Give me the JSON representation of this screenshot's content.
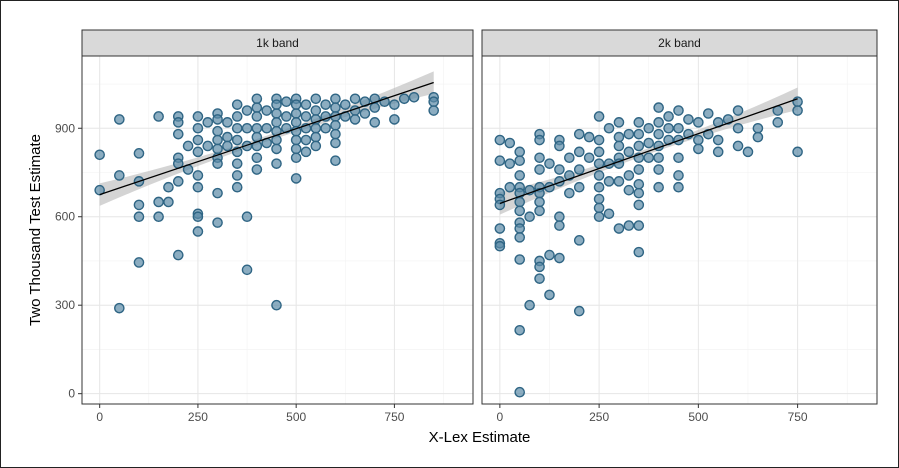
{
  "chart_data": {
    "type": "scatter",
    "xlabel": "X-Lex Estimate",
    "ylabel": "Two Thousand Test Estimate",
    "xlim": [
      -45,
      950
    ],
    "ylim": [
      -35,
      1145
    ],
    "xticks": [
      0,
      250,
      500,
      750
    ],
    "yticks": [
      0,
      300,
      600,
      900
    ],
    "grid": true,
    "colors": {
      "point_fill": "#5b8aa6",
      "point_stroke": "#2f6584",
      "fit_line": "#000000",
      "ci_band": "#bdbdbd"
    },
    "panels": [
      {
        "label": "1k band",
        "fit": {
          "x": [
            0,
            850
          ],
          "y": [
            675,
            1055
          ]
        },
        "points": [
          [
            0,
            810
          ],
          [
            0,
            690
          ],
          [
            50,
            930
          ],
          [
            50,
            740
          ],
          [
            50,
            290
          ],
          [
            100,
            815
          ],
          [
            100,
            720
          ],
          [
            100,
            640
          ],
          [
            100,
            600
          ],
          [
            100,
            445
          ],
          [
            150,
            940
          ],
          [
            150,
            650
          ],
          [
            150,
            600
          ],
          [
            175,
            700
          ],
          [
            175,
            650
          ],
          [
            200,
            940
          ],
          [
            200,
            920
          ],
          [
            200,
            880
          ],
          [
            200,
            800
          ],
          [
            200,
            780
          ],
          [
            200,
            720
          ],
          [
            200,
            470
          ],
          [
            225,
            840
          ],
          [
            225,
            760
          ],
          [
            250,
            940
          ],
          [
            250,
            900
          ],
          [
            250,
            860
          ],
          [
            250,
            820
          ],
          [
            250,
            740
          ],
          [
            250,
            700
          ],
          [
            250,
            610
          ],
          [
            250,
            600
          ],
          [
            250,
            550
          ],
          [
            275,
            920
          ],
          [
            275,
            840
          ],
          [
            300,
            950
          ],
          [
            300,
            930
          ],
          [
            300,
            890
          ],
          [
            300,
            860
          ],
          [
            300,
            830
          ],
          [
            300,
            800
          ],
          [
            300,
            780
          ],
          [
            300,
            680
          ],
          [
            300,
            580
          ],
          [
            325,
            920
          ],
          [
            325,
            870
          ],
          [
            325,
            840
          ],
          [
            350,
            980
          ],
          [
            350,
            940
          ],
          [
            350,
            900
          ],
          [
            350,
            860
          ],
          [
            350,
            820
          ],
          [
            350,
            780
          ],
          [
            350,
            740
          ],
          [
            350,
            700
          ],
          [
            375,
            960
          ],
          [
            375,
            900
          ],
          [
            375,
            840
          ],
          [
            375,
            600
          ],
          [
            375,
            420
          ],
          [
            400,
            1000
          ],
          [
            400,
            970
          ],
          [
            400,
            940
          ],
          [
            400,
            900
          ],
          [
            400,
            870
          ],
          [
            400,
            840
          ],
          [
            400,
            800
          ],
          [
            400,
            760
          ],
          [
            425,
            960
          ],
          [
            425,
            900
          ],
          [
            425,
            850
          ],
          [
            450,
            1000
          ],
          [
            450,
            980
          ],
          [
            450,
            950
          ],
          [
            450,
            920
          ],
          [
            450,
            890
          ],
          [
            450,
            860
          ],
          [
            450,
            830
          ],
          [
            450,
            780
          ],
          [
            450,
            300
          ],
          [
            475,
            990
          ],
          [
            475,
            940
          ],
          [
            475,
            900
          ],
          [
            500,
            1000
          ],
          [
            500,
            980
          ],
          [
            500,
            950
          ],
          [
            500,
            920
          ],
          [
            500,
            890
          ],
          [
            500,
            860
          ],
          [
            500,
            830
          ],
          [
            500,
            800
          ],
          [
            500,
            730
          ],
          [
            525,
            980
          ],
          [
            525,
            940
          ],
          [
            525,
            900
          ],
          [
            525,
            860
          ],
          [
            525,
            820
          ],
          [
            550,
            1000
          ],
          [
            550,
            960
          ],
          [
            550,
            930
          ],
          [
            550,
            900
          ],
          [
            550,
            870
          ],
          [
            550,
            840
          ],
          [
            575,
            980
          ],
          [
            575,
            940
          ],
          [
            575,
            900
          ],
          [
            600,
            1000
          ],
          [
            600,
            970
          ],
          [
            600,
            940
          ],
          [
            600,
            910
          ],
          [
            600,
            880
          ],
          [
            600,
            850
          ],
          [
            600,
            790
          ],
          [
            625,
            980
          ],
          [
            625,
            940
          ],
          [
            650,
            1000
          ],
          [
            650,
            960
          ],
          [
            650,
            930
          ],
          [
            675,
            990
          ],
          [
            675,
            950
          ],
          [
            700,
            1000
          ],
          [
            700,
            970
          ],
          [
            700,
            920
          ],
          [
            725,
            990
          ],
          [
            750,
            980
          ],
          [
            750,
            930
          ],
          [
            775,
            1000
          ],
          [
            800,
            1005
          ],
          [
            850,
            1005
          ],
          [
            850,
            990
          ],
          [
            850,
            960
          ]
        ]
      },
      {
        "label": "2k band",
        "fit": {
          "x": [
            0,
            750
          ],
          "y": [
            645,
            1000
          ]
        },
        "points": [
          [
            0,
            860
          ],
          [
            0,
            790
          ],
          [
            0,
            680
          ],
          [
            0,
            660
          ],
          [
            0,
            640
          ],
          [
            0,
            560
          ],
          [
            0,
            510
          ],
          [
            0,
            500
          ],
          [
            25,
            850
          ],
          [
            25,
            780
          ],
          [
            25,
            700
          ],
          [
            50,
            820
          ],
          [
            50,
            790
          ],
          [
            50,
            740
          ],
          [
            50,
            700
          ],
          [
            50,
            680
          ],
          [
            50,
            650
          ],
          [
            50,
            620
          ],
          [
            50,
            580
          ],
          [
            50,
            560
          ],
          [
            50,
            530
          ],
          [
            50,
            455
          ],
          [
            50,
            215
          ],
          [
            50,
            5
          ],
          [
            75,
            690
          ],
          [
            75,
            600
          ],
          [
            75,
            300
          ],
          [
            100,
            880
          ],
          [
            100,
            860
          ],
          [
            100,
            800
          ],
          [
            100,
            760
          ],
          [
            100,
            700
          ],
          [
            100,
            680
          ],
          [
            100,
            650
          ],
          [
            100,
            620
          ],
          [
            100,
            450
          ],
          [
            100,
            430
          ],
          [
            100,
            390
          ],
          [
            125,
            780
          ],
          [
            125,
            700
          ],
          [
            125,
            470
          ],
          [
            125,
            335
          ],
          [
            150,
            860
          ],
          [
            150,
            840
          ],
          [
            150,
            760
          ],
          [
            150,
            720
          ],
          [
            150,
            600
          ],
          [
            150,
            570
          ],
          [
            150,
            460
          ],
          [
            175,
            800
          ],
          [
            175,
            740
          ],
          [
            175,
            680
          ],
          [
            200,
            880
          ],
          [
            200,
            820
          ],
          [
            200,
            760
          ],
          [
            200,
            700
          ],
          [
            200,
            520
          ],
          [
            200,
            280
          ],
          [
            225,
            870
          ],
          [
            225,
            800
          ],
          [
            250,
            940
          ],
          [
            250,
            860
          ],
          [
            250,
            820
          ],
          [
            250,
            780
          ],
          [
            250,
            740
          ],
          [
            250,
            700
          ],
          [
            250,
            660
          ],
          [
            250,
            630
          ],
          [
            250,
            600
          ],
          [
            275,
            900
          ],
          [
            275,
            780
          ],
          [
            275,
            720
          ],
          [
            275,
            610
          ],
          [
            300,
            920
          ],
          [
            300,
            870
          ],
          [
            300,
            840
          ],
          [
            300,
            800
          ],
          [
            300,
            780
          ],
          [
            300,
            720
          ],
          [
            300,
            560
          ],
          [
            325,
            880
          ],
          [
            325,
            820
          ],
          [
            325,
            740
          ],
          [
            325,
            690
          ],
          [
            325,
            570
          ],
          [
            350,
            920
          ],
          [
            350,
            880
          ],
          [
            350,
            840
          ],
          [
            350,
            800
          ],
          [
            350,
            760
          ],
          [
            350,
            710
          ],
          [
            350,
            680
          ],
          [
            350,
            640
          ],
          [
            350,
            570
          ],
          [
            350,
            480
          ],
          [
            375,
            900
          ],
          [
            375,
            850
          ],
          [
            375,
            800
          ],
          [
            400,
            970
          ],
          [
            400,
            920
          ],
          [
            400,
            880
          ],
          [
            400,
            840
          ],
          [
            400,
            800
          ],
          [
            400,
            760
          ],
          [
            400,
            700
          ],
          [
            425,
            940
          ],
          [
            425,
            900
          ],
          [
            425,
            860
          ],
          [
            450,
            960
          ],
          [
            450,
            900
          ],
          [
            450,
            860
          ],
          [
            450,
            800
          ],
          [
            450,
            740
          ],
          [
            450,
            700
          ],
          [
            475,
            930
          ],
          [
            475,
            880
          ],
          [
            500,
            920
          ],
          [
            500,
            860
          ],
          [
            500,
            830
          ],
          [
            525,
            950
          ],
          [
            525,
            880
          ],
          [
            550,
            920
          ],
          [
            550,
            860
          ],
          [
            550,
            820
          ],
          [
            575,
            930
          ],
          [
            600,
            960
          ],
          [
            600,
            900
          ],
          [
            600,
            840
          ],
          [
            625,
            820
          ],
          [
            650,
            900
          ],
          [
            650,
            870
          ],
          [
            700,
            960
          ],
          [
            700,
            920
          ],
          [
            750,
            990
          ],
          [
            750,
            960
          ],
          [
            750,
            820
          ]
        ]
      }
    ]
  }
}
